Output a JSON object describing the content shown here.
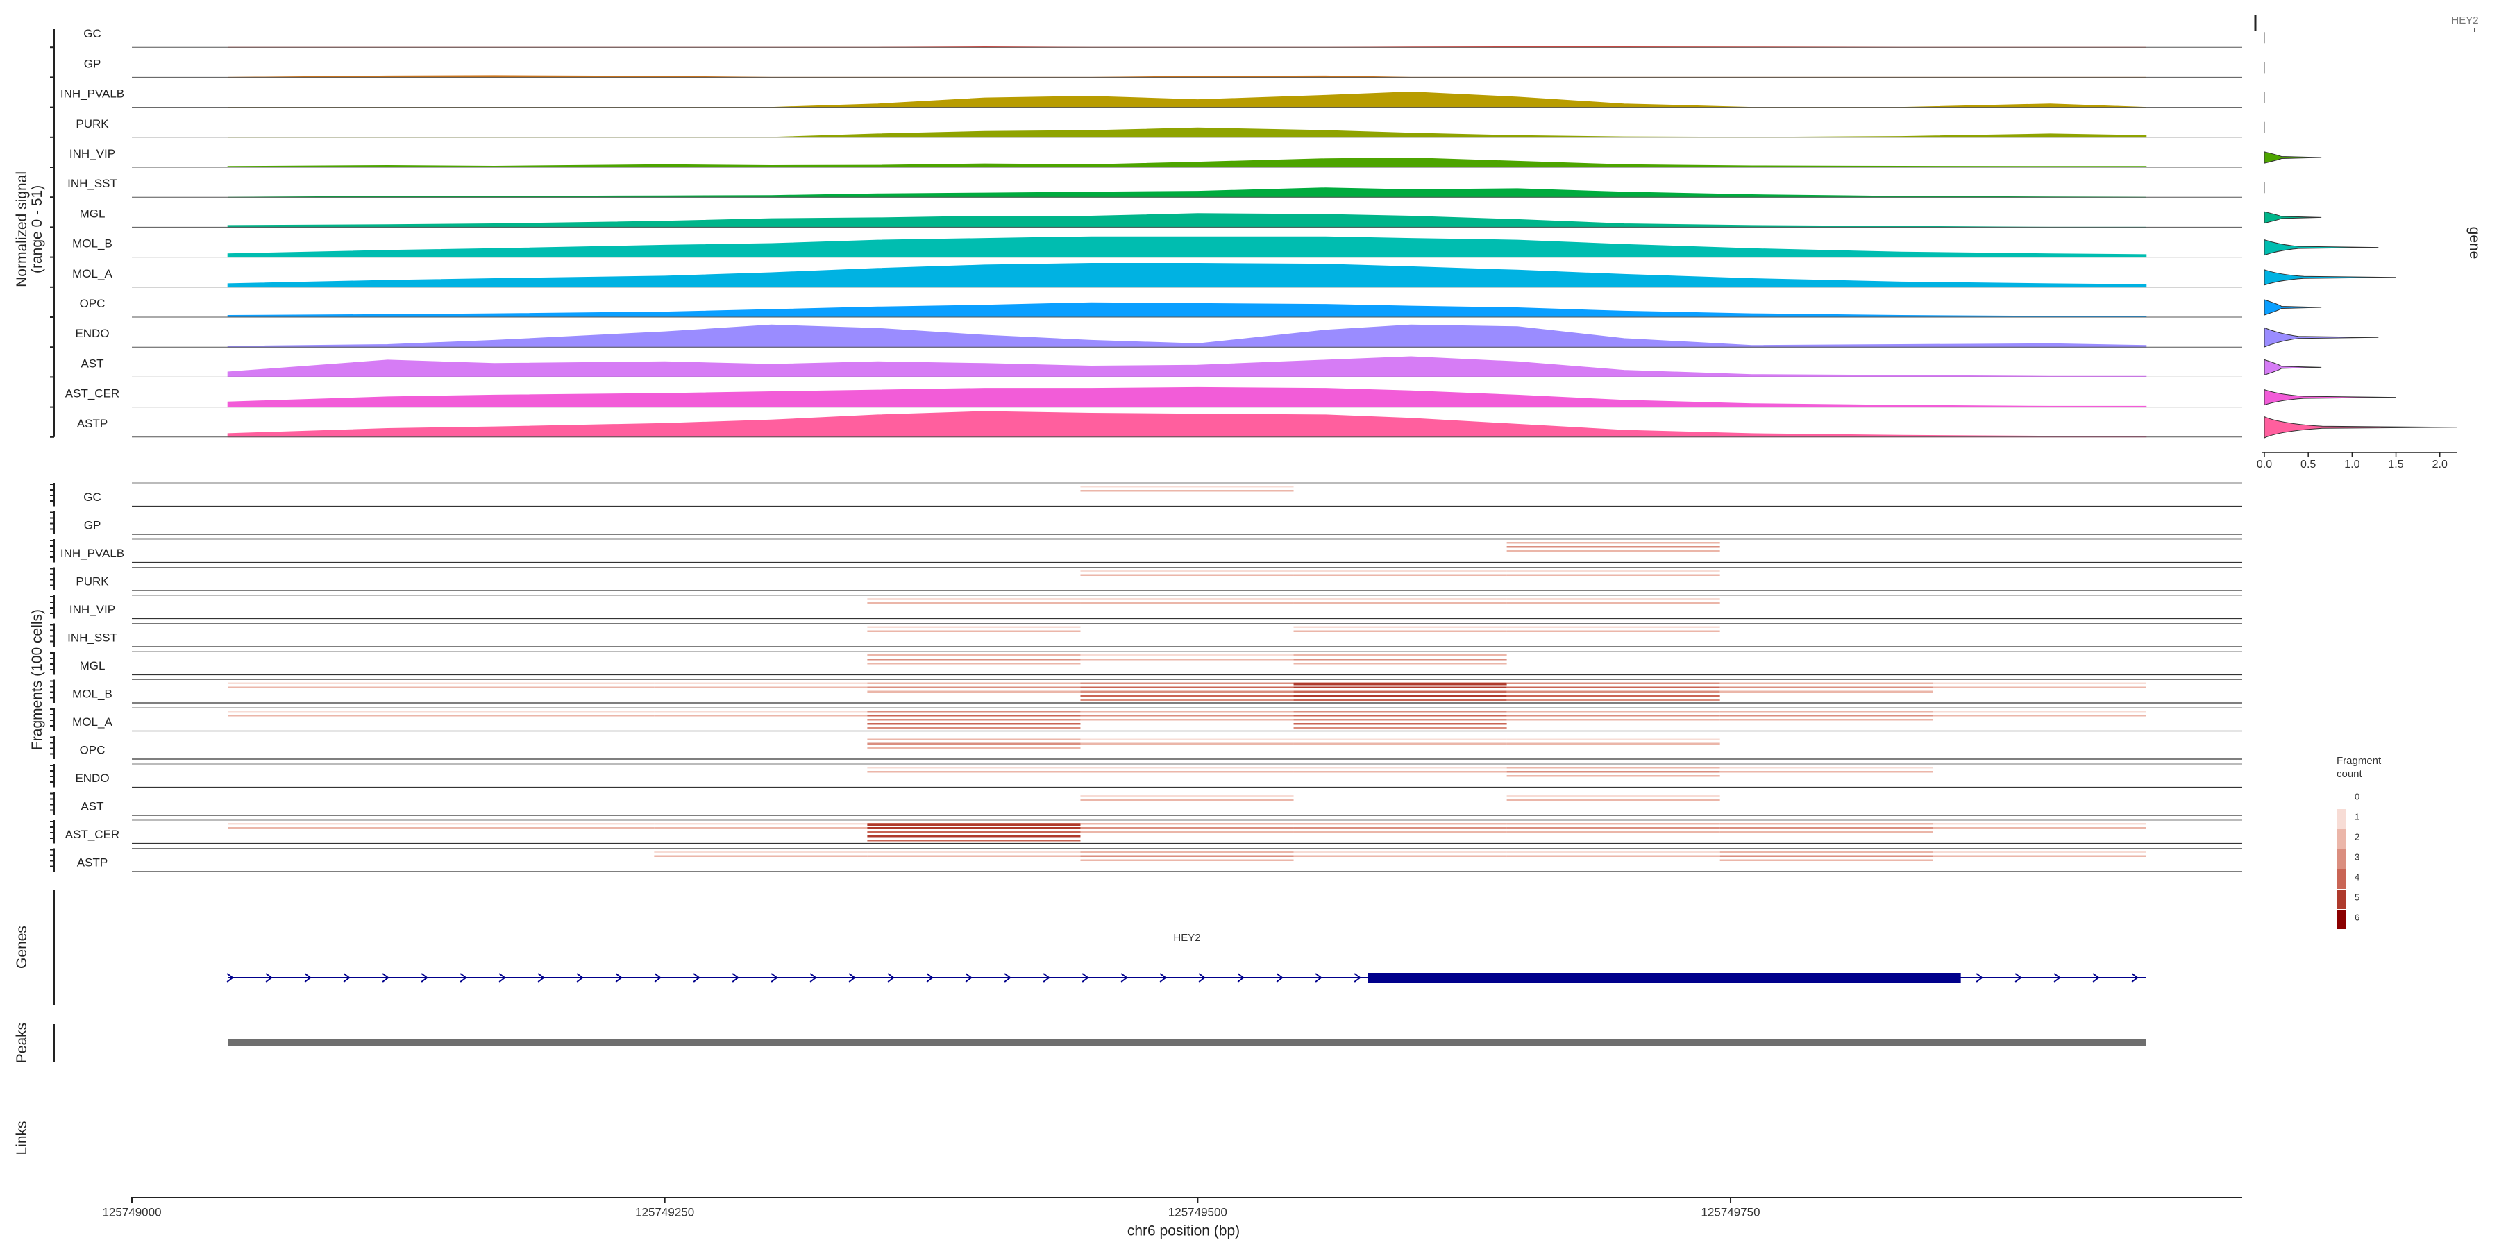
{
  "chart_data": {
    "type": "area",
    "region": "chr6",
    "xlabel": "chr6 position (bp)",
    "xlim": [
      125749000,
      125749990
    ],
    "xticks": [
      125749000,
      125749250,
      125749500,
      125749750
    ],
    "xtick_labels": [
      "125749000",
      "125749250",
      "125749500",
      "125749750"
    ],
    "coverage": {
      "ylabel_line1": "Normalized signal",
      "ylabel_line2": "(range 0 - 51)",
      "ylim": [
        0,
        51
      ],
      "x": [
        125749045,
        125749120,
        125749170,
        125749250,
        125749300,
        125749350,
        125749400,
        125749450,
        125749500,
        125749560,
        125749600,
        125749650,
        125749700,
        125749760,
        125749830,
        125749900,
        125749945
      ],
      "series": [
        {
          "name": "GC",
          "color": "#E8473F",
          "values": [
            0,
            0,
            0,
            0,
            0,
            0,
            0.3,
            0,
            0,
            0,
            0.2,
            0.3,
            0.3,
            0.2,
            0,
            0,
            0
          ]
        },
        {
          "name": "GP",
          "color": "#D4781A",
          "values": [
            0,
            0.8,
            1,
            0.6,
            0,
            0,
            0,
            0,
            0.6,
            0.8,
            0,
            0,
            0,
            0,
            0,
            0,
            0
          ]
        },
        {
          "name": "INH_PVALB",
          "color": "#B89C00",
          "values": [
            0,
            0,
            0,
            0,
            0,
            2,
            5.5,
            6.5,
            4.5,
            7,
            9,
            6,
            2,
            0,
            0,
            2,
            0
          ]
        },
        {
          "name": "PURK",
          "color": "#8FA300",
          "values": [
            0,
            0,
            0,
            0,
            0,
            2,
            3.5,
            4,
            5.5,
            4,
            2.5,
            1,
            0.3,
            0,
            0.5,
            2,
            1
          ]
        },
        {
          "name": "INH_VIP",
          "color": "#4DA400",
          "values": [
            0.5,
            1,
            0.6,
            1.5,
            1,
            1.2,
            2,
            1.5,
            3,
            5,
            5.5,
            3.5,
            1.5,
            0.8,
            0.6,
            0.5,
            0.5
          ]
        },
        {
          "name": "INH_SST",
          "color": "#00AB3E",
          "values": [
            0,
            0.5,
            0.5,
            0.8,
            1,
            2,
            2.5,
            3,
            3.5,
            5.5,
            4.5,
            5,
            3,
            1.5,
            0.5,
            0.2,
            0
          ]
        },
        {
          "name": "MGL",
          "color": "#00B58A",
          "values": [
            1,
            1.5,
            2,
            3.5,
            5,
            5.5,
            6.5,
            6.5,
            8,
            7.5,
            6.5,
            4.5,
            2,
            1,
            0.5,
            0,
            0
          ]
        },
        {
          "name": "MOL_B",
          "color": "#00BDB0",
          "values": [
            2,
            4,
            5,
            7,
            8,
            10,
            11,
            12,
            12,
            12,
            11,
            10,
            7.5,
            5,
            3,
            2,
            1.5
          ]
        },
        {
          "name": "MOL_A",
          "color": "#00B2E2",
          "values": [
            2,
            4,
            5,
            6.5,
            8.5,
            11,
            13,
            14,
            14,
            13.5,
            12,
            10,
            7.5,
            5,
            3,
            2,
            1.5
          ]
        },
        {
          "name": "OPC",
          "color": "#0A9FFF",
          "values": [
            1,
            1.5,
            2,
            3,
            4.5,
            6,
            7,
            8.5,
            8,
            7.5,
            6.5,
            5.5,
            3.5,
            2,
            1,
            0.5,
            0.5
          ]
        },
        {
          "name": "ENDO",
          "color": "#9A8CFF",
          "values": [
            0.5,
            1.5,
            4,
            9,
            13,
            11,
            7,
            4,
            2,
            10,
            13,
            12,
            5,
            1,
            1.5,
            2,
            1
          ]
        },
        {
          "name": "AST",
          "color": "#D67CF5",
          "values": [
            3,
            10,
            8,
            9,
            7.5,
            9,
            8,
            6.5,
            7,
            10,
            12,
            9,
            4,
            1.5,
            1,
            0.5,
            0.5
          ]
        },
        {
          "name": "AST_CER",
          "color": "#F25CD8",
          "values": [
            3,
            6,
            7,
            8,
            9,
            10,
            11,
            11,
            11.5,
            11,
            9.5,
            7,
            4,
            2,
            1,
            0.5,
            0.5
          ]
        },
        {
          "name": "ASTP",
          "color": "#FF5F9E",
          "values": [
            2,
            5,
            6,
            8,
            10,
            13,
            15,
            14,
            13.5,
            13,
            11,
            7.5,
            4,
            2,
            1,
            0.5,
            0.5
          ]
        }
      ]
    },
    "fragments": {
      "ylabel": "Fragments (100 cells)",
      "x_bins": [
        125749045,
        125749145,
        125749245,
        125749345,
        125749445,
        125749545,
        125749645,
        125749745,
        125749845,
        125749945
      ],
      "legend_title_line1": "Fragment",
      "legend_title_line2": "count",
      "legend_levels": [
        "0",
        "1",
        "2",
        "3",
        "4",
        "5",
        "6"
      ],
      "legend_colors": [
        "#FFFFFF",
        "#F7DCD5",
        "#EBB6A9",
        "#DA8E7F",
        "#C96555",
        "#AE3A2C",
        "#8B0000"
      ],
      "groups": [
        {
          "name": "GC",
          "counts": [
            0,
            0,
            0,
            0,
            1,
            0,
            0,
            0,
            0
          ]
        },
        {
          "name": "GP",
          "counts": [
            0,
            0,
            0,
            0,
            0,
            0,
            0,
            0,
            0
          ]
        },
        {
          "name": "INH_PVALB",
          "counts": [
            0,
            0,
            0,
            0,
            0,
            0,
            2,
            0,
            0
          ]
        },
        {
          "name": "PURK",
          "counts": [
            0,
            0,
            0,
            0,
            1,
            1,
            1,
            0,
            0
          ]
        },
        {
          "name": "INH_VIP",
          "counts": [
            0,
            0,
            0,
            1,
            1,
            1,
            1,
            0,
            0
          ]
        },
        {
          "name": "INH_SST",
          "counts": [
            0,
            0,
            0,
            1,
            0,
            1,
            1,
            0,
            0
          ]
        },
        {
          "name": "MGL",
          "counts": [
            0,
            0,
            0,
            2,
            1,
            2,
            0,
            0,
            0
          ]
        },
        {
          "name": "MOL_B",
          "counts": [
            1,
            1,
            1,
            2,
            3,
            4,
            3,
            2,
            1
          ]
        },
        {
          "name": "MOL_A",
          "counts": [
            1,
            1,
            1,
            3,
            2,
            3,
            2,
            2,
            1
          ]
        },
        {
          "name": "OPC",
          "counts": [
            0,
            0,
            0,
            2,
            1,
            1,
            1,
            0,
            0
          ]
        },
        {
          "name": "ENDO",
          "counts": [
            0,
            0,
            0,
            1,
            1,
            1,
            2,
            1,
            0
          ]
        },
        {
          "name": "AST",
          "counts": [
            0,
            0,
            0,
            0,
            1,
            0,
            1,
            0,
            0
          ]
        },
        {
          "name": "AST_CER",
          "counts": [
            1,
            1,
            1,
            4,
            2,
            2,
            2,
            2,
            1
          ]
        },
        {
          "name": "ASTP",
          "counts": [
            0,
            0,
            1,
            1,
            2,
            1,
            1,
            2,
            1
          ]
        }
      ]
    },
    "genes": {
      "label": "Genes",
      "items": [
        {
          "name": "HEY2",
          "start": 125749045,
          "end": 125749945,
          "strand": "+",
          "thick_start": 125749580,
          "thick_end": 125749858
        }
      ]
    },
    "peaks": {
      "label": "Peaks",
      "items": [
        {
          "start": 125749045,
          "end": 125749945
        }
      ]
    },
    "links": {
      "label": "Links"
    },
    "expression": {
      "gene": "HEY2",
      "side_label": "gene",
      "xlim": [
        0,
        2.2
      ],
      "xticks": [
        0.0,
        0.5,
        1.0,
        1.5,
        2.0
      ],
      "xtick_labels": [
        "0.0",
        "0.5",
        "1.0",
        "1.5",
        "2.0"
      ],
      "groups": [
        {
          "name": "GC",
          "max": 0.0,
          "density": 0.0
        },
        {
          "name": "GP",
          "max": 0.0,
          "density": 0.0
        },
        {
          "name": "INH_PVALB",
          "max": 0.0,
          "density": 0.0
        },
        {
          "name": "PURK",
          "max": 0.0,
          "density": 0.0
        },
        {
          "name": "INH_VIP",
          "max": 0.65,
          "density": 0.3
        },
        {
          "name": "INH_SST",
          "max": 0.0,
          "density": 0.0
        },
        {
          "name": "MGL",
          "max": 0.65,
          "density": 0.3
        },
        {
          "name": "MOL_B",
          "max": 1.3,
          "density": 0.5
        },
        {
          "name": "MOL_A",
          "max": 1.5,
          "density": 0.5
        },
        {
          "name": "OPC",
          "max": 0.65,
          "density": 0.5
        },
        {
          "name": "ENDO",
          "max": 1.3,
          "density": 0.7
        },
        {
          "name": "AST",
          "max": 0.65,
          "density": 0.5
        },
        {
          "name": "AST_CER",
          "max": 1.5,
          "density": 0.5
        },
        {
          "name": "ASTP",
          "max": 2.2,
          "density": 0.8
        }
      ]
    }
  }
}
